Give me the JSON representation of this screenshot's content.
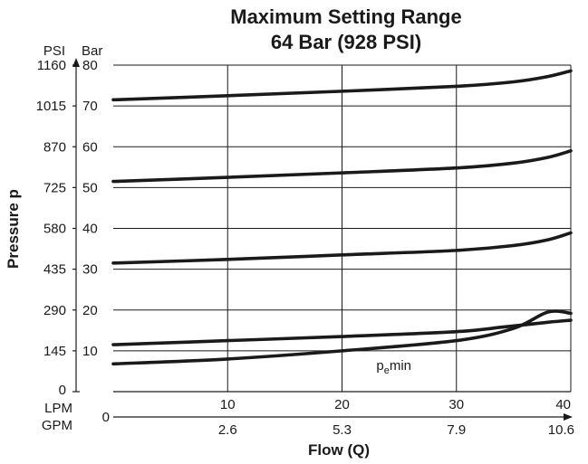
{
  "chart_data": {
    "type": "line",
    "title": "Maximum Setting Range",
    "subtitle": "64 Bar (928 PSI)",
    "ylabel": "Pressure p",
    "xlabel": "Flow (Q)",
    "y_units": {
      "primary": "PSI",
      "secondary": "Bar"
    },
    "x_units": {
      "primary": "LPM",
      "secondary": "GPM"
    },
    "y_bar_ticks": [
      "0",
      "10",
      "20",
      "30",
      "40",
      "50",
      "60",
      "70",
      "80"
    ],
    "y_psi_ticks": [
      "0",
      "145",
      "290",
      "435",
      "580",
      "725",
      "870",
      "1015",
      "1160"
    ],
    "x_lpm_ticks": [
      "10",
      "20",
      "30",
      "40"
    ],
    "x_gpm_ticks": [
      "2.6",
      "5.3",
      "7.9",
      "10.6"
    ],
    "x_origin_label": "0",
    "xlim": [
      0,
      40
    ],
    "ylim": [
      0,
      80
    ],
    "grid": true,
    "annotation": {
      "text_main": "p",
      "text_sub": "e",
      "text_suffix": "min",
      "x": 23,
      "y": 5.3
    },
    "series": [
      {
        "x": [
          0,
          10,
          20,
          30,
          35,
          38,
          40
        ],
        "y": [
          71.5,
          72.5,
          73.6,
          74.8,
          75.9,
          77.2,
          78.6
        ]
      },
      {
        "x": [
          0,
          10,
          20,
          30,
          35,
          38,
          40
        ],
        "y": [
          51.5,
          52.5,
          53.6,
          54.8,
          56.0,
          57.4,
          59.0
        ]
      },
      {
        "x": [
          0,
          10,
          20,
          30,
          35,
          38,
          40
        ],
        "y": [
          31.5,
          32.4,
          33.5,
          34.6,
          35.8,
          37.2,
          38.9
        ]
      },
      {
        "x": [
          0,
          10,
          20,
          30,
          34,
          38,
          40
        ],
        "y": [
          11.5,
          12.5,
          13.5,
          14.7,
          15.8,
          17.0,
          17.5
        ]
      },
      {
        "x": [
          0,
          10,
          20,
          30,
          35,
          38,
          40
        ],
        "y": [
          6.8,
          8.0,
          10.0,
          12.5,
          15.5,
          19.5,
          19.2
        ]
      }
    ]
  }
}
